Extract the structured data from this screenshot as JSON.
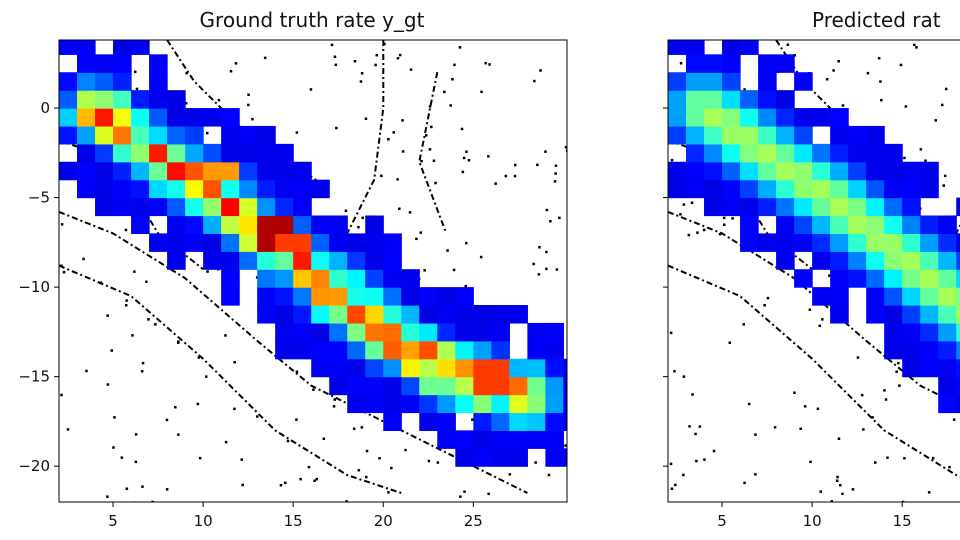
{
  "chart_data": [
    {
      "type": "heatmap",
      "title": "Ground truth rate y_gt",
      "xlim": [
        2,
        30.2
      ],
      "ylim": [
        -22,
        3.8
      ],
      "xticks": [
        5,
        10,
        15,
        20,
        25
      ],
      "yticks": [
        0,
        -5,
        -10,
        -15,
        -20
      ],
      "x_tick_labels": [
        "5",
        "10",
        "15",
        "20",
        "25"
      ],
      "y_tick_labels": [
        "0",
        "−5",
        "−10",
        "−15",
        "−20"
      ],
      "cell_size": 1,
      "colormap": "jet",
      "heat_path": [
        [
          4,
          0
        ],
        [
          8,
          -3
        ],
        [
          11,
          -5
        ],
        [
          14,
          -7.5
        ],
        [
          17,
          -10
        ],
        [
          20,
          -12.5
        ],
        [
          23,
          -14.5
        ],
        [
          26,
          -15.5
        ],
        [
          28,
          -16
        ]
      ],
      "band_halfwidth": 2.2,
      "peaks": [
        {
          "x": 14.0,
          "y": -7.0,
          "value": 0.95
        },
        {
          "x": 15.0,
          "y": -7.5,
          "value": 0.8
        },
        {
          "x": 20.5,
          "y": -12.5,
          "value": 0.75
        },
        {
          "x": 26.0,
          "y": -15.0,
          "value": 0.8
        },
        {
          "x": 27.5,
          "y": -15.5,
          "value": 0.75
        },
        {
          "x": 11.0,
          "y": -3.5,
          "value": 0.7
        },
        {
          "x": 17.5,
          "y": -10.5,
          "value": 0.7
        }
      ],
      "max_value": 0.72,
      "noisy": true
    },
    {
      "type": "heatmap",
      "title": "Predicted rat",
      "xlim": [
        2,
        30.2
      ],
      "ylim": [
        -22,
        3.8
      ],
      "xticks": [
        5,
        10,
        15
      ],
      "yticks": [
        0,
        -5,
        -10,
        -15,
        -20
      ],
      "x_tick_labels": [
        "5",
        "10",
        "15"
      ],
      "y_tick_labels": [],
      "cell_size": 1,
      "colormap": "jet",
      "heat_path": [
        [
          4,
          0
        ],
        [
          8,
          -3
        ],
        [
          11,
          -5
        ],
        [
          14,
          -7.5
        ],
        [
          17,
          -10
        ],
        [
          20,
          -12.5
        ],
        [
          23,
          -14.5
        ],
        [
          26,
          -15.5
        ],
        [
          28,
          -16
        ]
      ],
      "band_halfwidth": 2.6,
      "peaks": [],
      "max_value": 0.5,
      "noisy": false
    }
  ],
  "colors": {
    "low": "#00008f",
    "mid": "#3cc8ff",
    "high": "#ff3300",
    "map": "#000000",
    "axis": "#000000"
  }
}
